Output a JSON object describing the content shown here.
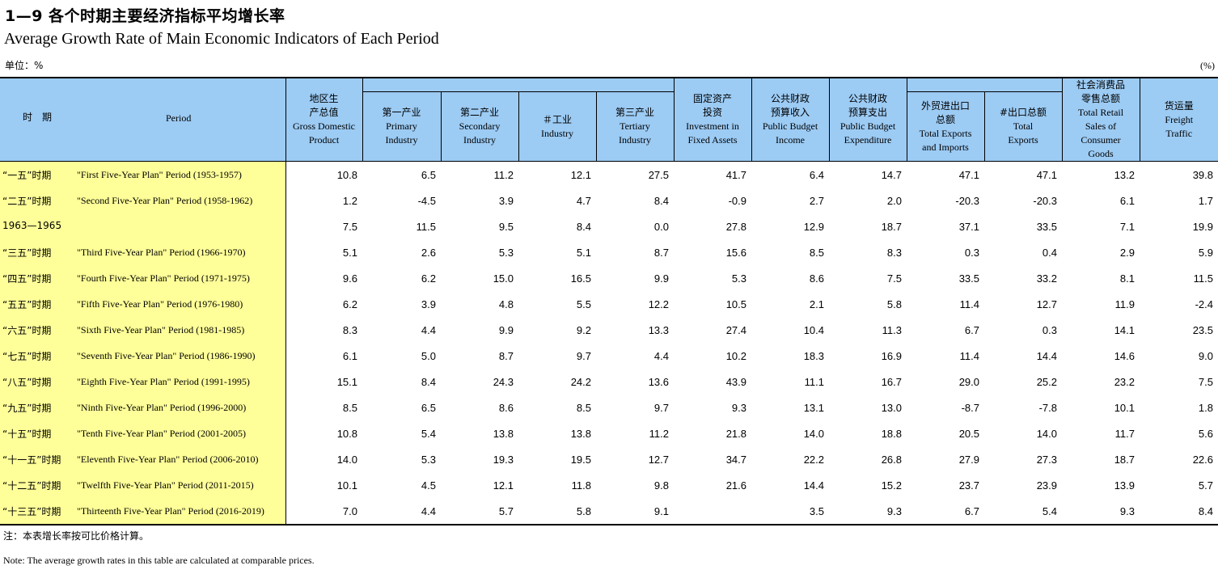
{
  "title_cn": "1—9  各个时期主要经济指标平均增长率",
  "title_en": "Average Growth Rate of Main Economic Indicators of Each Period",
  "unit_cn": "单位：%",
  "unit_en": "(%)",
  "headers": {
    "period_cn": "时　期",
    "period_en": "Period",
    "gdp_cn": "地区生产总值",
    "gdp_en": "Gross Domestic Product",
    "primary_cn": "第一产业",
    "primary_en": "Primary Industry",
    "secondary_cn": "第二产业",
    "secondary_en": "Secondary Industry",
    "industry_cn": "＃工业",
    "industry_en": "Industry",
    "tertiary_cn": "第三产业",
    "tertiary_en": "Tertiary Industry",
    "investment_cn": "固定资产投资",
    "investment_en": "Investment in Fixed Assets",
    "revenue_cn": "公共财政预算收入",
    "revenue_en": "Public Budget Income",
    "expenditure_cn": "公共财政预算支出",
    "expenditure_en": "Public Budget Expenditure",
    "trade_cn": "外贸进出口总额",
    "trade_en": "Total Exports and Imports",
    "exports_cn": "#出口总额",
    "exports_en": "Total Exports",
    "retail_cn": "社会消费品零售总额",
    "retail_en": "Total Retail Sales of Consumer Goods",
    "freight_cn": "货运量",
    "freight_en": "Freight Traffic"
  },
  "rows": [
    {
      "cn": "“一五”时期",
      "en": "\"First Five-Year Plan\" Period  (1953-1957)",
      "v": [
        "10.8",
        "6.5",
        "11.2",
        "12.1",
        "27.5",
        "41.7",
        "6.4",
        "14.7",
        "47.1",
        "47.1",
        "13.2",
        "39.8"
      ]
    },
    {
      "cn": "“二五”时期",
      "en": "\"Second Five-Year Plan\" Period (1958-1962)",
      "v": [
        "1.2",
        "-4.5",
        "3.9",
        "4.7",
        "8.4",
        "-0.9",
        "2.7",
        "2.0",
        "-20.3",
        "-20.3",
        "6.1",
        "1.7"
      ]
    },
    {
      "cn": "1963—1965",
      "en": "",
      "v": [
        "7.5",
        "11.5",
        "9.5",
        "8.4",
        "0.0",
        "27.8",
        "12.9",
        "18.7",
        "37.1",
        "33.5",
        "7.1",
        "19.9"
      ]
    },
    {
      "cn": "“三五”时期",
      "en": "\"Third Five-Year Plan\" Period (1966-1970)",
      "v": [
        "5.1",
        "2.6",
        "5.3",
        "5.1",
        "8.7",
        "15.6",
        "8.5",
        "8.3",
        "0.3",
        "0.4",
        "2.9",
        "5.9"
      ]
    },
    {
      "cn": "“四五”时期",
      "en": "\"Fourth Five-Year Plan\" Period (1971-1975)",
      "v": [
        "9.6",
        "6.2",
        "15.0",
        "16.5",
        "9.9",
        "5.3",
        "8.6",
        "7.5",
        "33.5",
        "33.2",
        "8.1",
        "11.5"
      ]
    },
    {
      "cn": "“五五”时期",
      "en": "\"Fifth Five-Year Plan\" Period (1976-1980)",
      "v": [
        "6.2",
        "3.9",
        "4.8",
        "5.5",
        "12.2",
        "10.5",
        "2.1",
        "5.8",
        "11.4",
        "12.7",
        "11.9",
        "-2.4"
      ]
    },
    {
      "cn": "“六五”时期",
      "en": "\"Sixth Five-Year Plan\" Period (1981-1985)",
      "v": [
        "8.3",
        "4.4",
        "9.9",
        "9.2",
        "13.3",
        "27.4",
        "10.4",
        "11.3",
        "6.7",
        "0.3",
        "14.1",
        "23.5"
      ]
    },
    {
      "cn": "“七五”时期",
      "en": "\"Seventh Five-Year Plan\" Period (1986-1990)",
      "v": [
        "6.1",
        "5.0",
        "8.7",
        "9.7",
        "4.4",
        "10.2",
        "18.3",
        "16.9",
        "11.4",
        "14.4",
        "14.6",
        "9.0"
      ]
    },
    {
      "cn": "“八五”时期",
      "en": "\"Eighth Five-Year Plan\" Period (1991-1995)",
      "v": [
        "15.1",
        "8.4",
        "24.3",
        "24.2",
        "13.6",
        "43.9",
        "11.1",
        "16.7",
        "29.0",
        "25.2",
        "23.2",
        "7.5"
      ]
    },
    {
      "cn": "“九五”时期",
      "en": "\"Ninth Five-Year Plan\" Period  (1996-2000)",
      "v": [
        "8.5",
        "6.5",
        "8.6",
        "8.5",
        "9.7",
        "9.3",
        "13.1",
        "13.0",
        "-8.7",
        "-7.8",
        "10.1",
        "1.8"
      ]
    },
    {
      "cn": "“十五”时期",
      "en": "\"Tenth Five-Year Plan\" Period (2001-2005)",
      "v": [
        "10.8",
        "5.4",
        "13.8",
        "13.8",
        "11.2",
        "21.8",
        "14.0",
        "18.8",
        "20.5",
        "14.0",
        "11.7",
        "5.6"
      ]
    },
    {
      "cn": "“十一五”时期",
      "en": "\"Eleventh Five-Year Plan\" Period (2006-2010)",
      "v": [
        "14.0",
        "5.3",
        "19.3",
        "19.5",
        "12.7",
        "34.7",
        "22.2",
        "26.8",
        "27.9",
        "27.3",
        "18.7",
        "22.6"
      ]
    },
    {
      "cn": "“十二五”时期",
      "en": "\"Twelfth Five-Year Plan\" Period (2011-2015)",
      "v": [
        "10.1",
        "4.5",
        "12.1",
        "11.8",
        "9.8",
        "21.6",
        "14.4",
        "15.2",
        "23.7",
        "23.9",
        "13.9",
        "5.7"
      ]
    },
    {
      "cn": "“十三五”时期",
      "en": "\"Thirteenth Five-Year Plan\" Period (2016-2019)",
      "v": [
        "7.0",
        "4.4",
        "5.7",
        "5.8",
        "9.1",
        "",
        "3.5",
        "9.3",
        "6.7",
        "5.4",
        "9.3",
        "8.4"
      ]
    }
  ],
  "note_cn": "注：本表增长率按可比价格计算。",
  "note_en": "Note:  The average growth rates in this table are calculated at comparable prices."
}
